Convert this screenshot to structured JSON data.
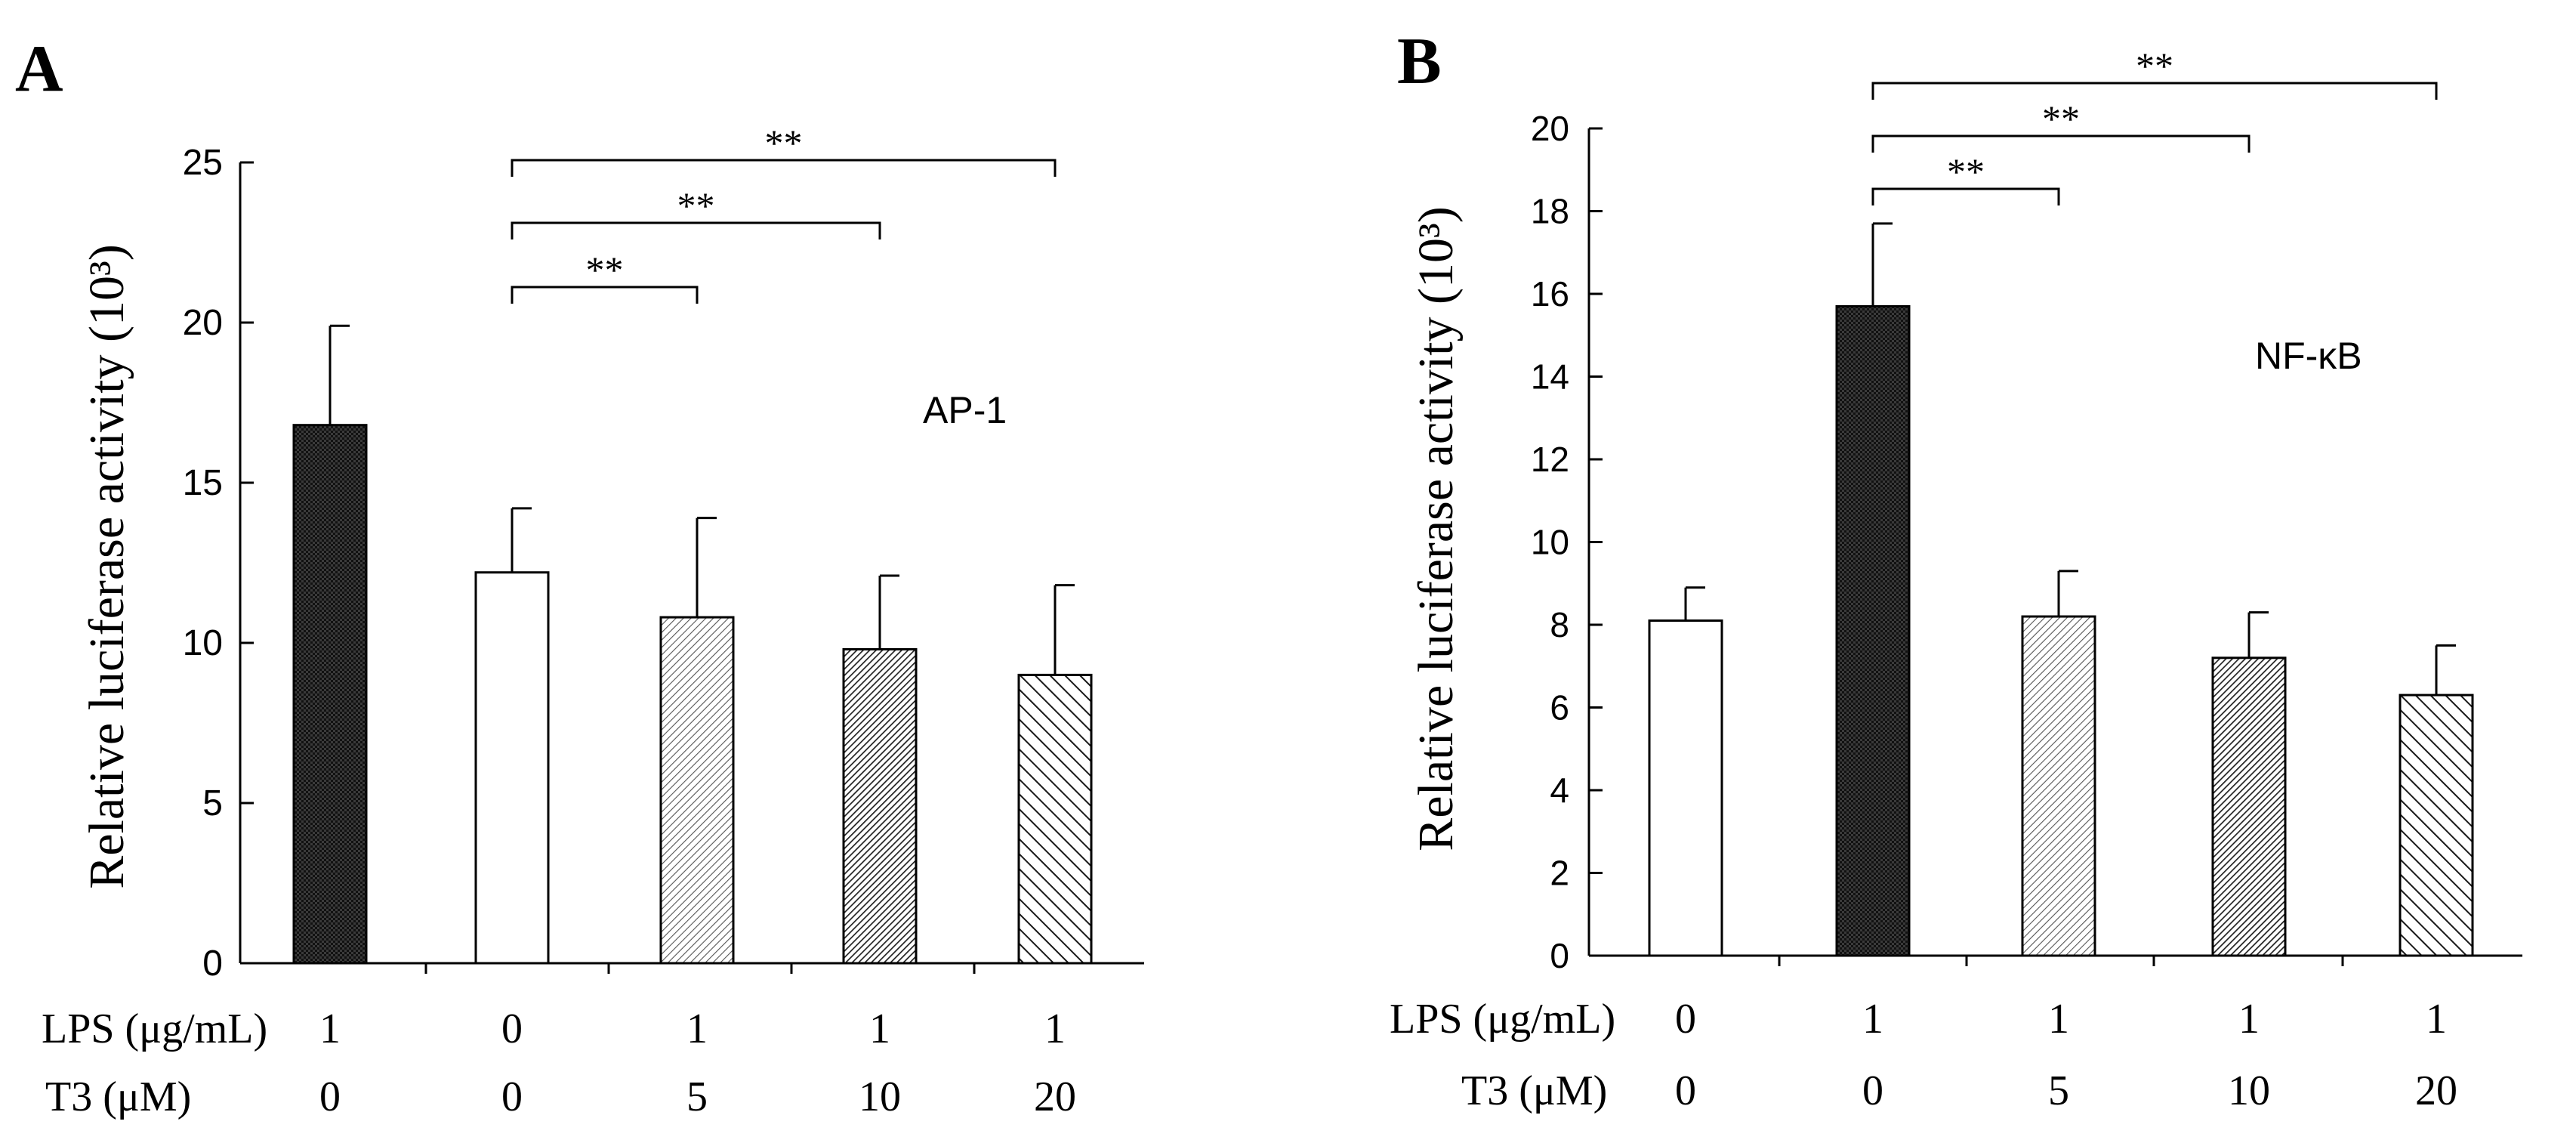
{
  "colors": {
    "axis": "#000000",
    "bar_white": "#ffffff",
    "bar_black": "#1a1a1a",
    "hatch": "#222222"
  },
  "chart_data": [
    {
      "panel_label": "A",
      "type": "bar",
      "ylabel": "Relative luciferase activity (10³)",
      "ylim": [
        0,
        25
      ],
      "yticks": [
        0,
        5,
        10,
        15,
        20,
        25
      ],
      "annotation": "AP-1",
      "row_labels": [
        "LPS (μg/mL)",
        "T3 (μM)"
      ],
      "groups": [
        {
          "lps": "1",
          "t3": "0",
          "value": 16.8,
          "error": 3.1,
          "fill": "dense_dark"
        },
        {
          "lps": "0",
          "t3": "0",
          "value": 12.2,
          "error": 2.0,
          "fill": "white"
        },
        {
          "lps": "1",
          "t3": "5",
          "value": 10.8,
          "error": 3.1,
          "fill": "fine_hatch_light"
        },
        {
          "lps": "1",
          "t3": "10",
          "value": 9.8,
          "error": 2.3,
          "fill": "fine_hatch_dark"
        },
        {
          "lps": "1",
          "t3": "20",
          "value": 9.0,
          "error": 2.8,
          "fill": "coarse_hatch"
        }
      ],
      "significance": [
        {
          "from": 1,
          "to": 2,
          "label": "**",
          "level": 0
        },
        {
          "from": 1,
          "to": 3,
          "label": "**",
          "level": 1
        },
        {
          "from": 1,
          "to": 4,
          "label": "**",
          "level": 2
        }
      ]
    },
    {
      "panel_label": "B",
      "type": "bar",
      "ylabel": "Relative luciferase activity (10³)",
      "ylim": [
        0,
        20
      ],
      "yticks": [
        0,
        2,
        4,
        6,
        8,
        10,
        12,
        14,
        16,
        18,
        20
      ],
      "annotation": "NF-κB",
      "row_labels": [
        "LPS (μg/mL)",
        "T3 (μM)"
      ],
      "groups": [
        {
          "lps": "0",
          "t3": "0",
          "value": 8.1,
          "error": 0.8,
          "fill": "white"
        },
        {
          "lps": "1",
          "t3": "0",
          "value": 15.7,
          "error": 2.0,
          "fill": "dense_dark"
        },
        {
          "lps": "1",
          "t3": "5",
          "value": 8.2,
          "error": 1.1,
          "fill": "fine_hatch_light"
        },
        {
          "lps": "1",
          "t3": "10",
          "value": 7.2,
          "error": 1.1,
          "fill": "fine_hatch_dark"
        },
        {
          "lps": "1",
          "t3": "20",
          "value": 6.3,
          "error": 1.2,
          "fill": "coarse_hatch"
        }
      ],
      "significance": [
        {
          "from": 1,
          "to": 2,
          "label": "**",
          "level": 0
        },
        {
          "from": 1,
          "to": 3,
          "label": "**",
          "level": 1
        },
        {
          "from": 1,
          "to": 4,
          "label": "**",
          "level": 2
        }
      ]
    }
  ]
}
